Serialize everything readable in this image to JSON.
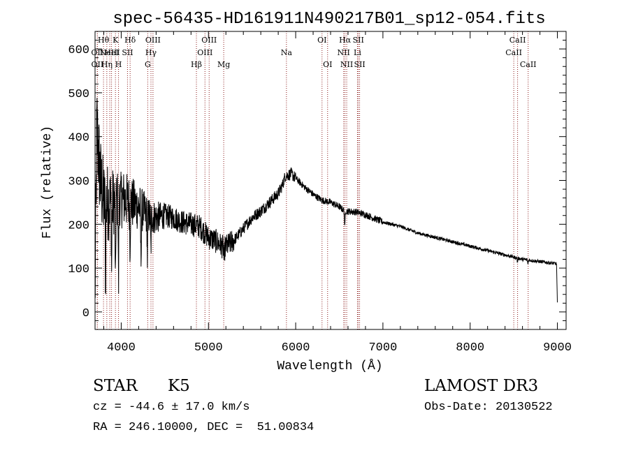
{
  "chart_data": {
    "type": "line",
    "title": "spec-56435-HD161911N490217B01_sp12-054.fits",
    "xlabel": "Wavelength (Å)",
    "ylabel": "Flux (relative)",
    "xlim": [
      3700,
      9100
    ],
    "ylim": [
      -40,
      640
    ],
    "xticks": [
      4000,
      5000,
      6000,
      7000,
      8000,
      9000
    ],
    "yticks": [
      0,
      100,
      200,
      300,
      400,
      500,
      600
    ],
    "x_tick_labels": [
      "4000",
      "5000",
      "6000",
      "7000",
      "8000",
      "9000"
    ],
    "y_tick_labels": [
      "0",
      "100",
      "200",
      "300",
      "400",
      "500",
      "600"
    ],
    "grid": false,
    "series": [
      {
        "name": "flux",
        "color": "#000000",
        "anchors": [
          {
            "w": 3700,
            "f": 30
          },
          {
            "w": 3720,
            "f": 420
          },
          {
            "w": 3760,
            "f": 300
          },
          {
            "w": 3800,
            "f": 250
          },
          {
            "w": 3900,
            "f": 250
          },
          {
            "w": 4000,
            "f": 260
          },
          {
            "w": 4100,
            "f": 250
          },
          {
            "w": 4200,
            "f": 240
          },
          {
            "w": 4300,
            "f": 220
          },
          {
            "w": 4400,
            "f": 215
          },
          {
            "w": 4500,
            "f": 220
          },
          {
            "w": 4600,
            "f": 215
          },
          {
            "w": 4700,
            "f": 205
          },
          {
            "w": 4800,
            "f": 200
          },
          {
            "w": 4900,
            "f": 195
          },
          {
            "w": 5000,
            "f": 170
          },
          {
            "w": 5100,
            "f": 160
          },
          {
            "w": 5180,
            "f": 145
          },
          {
            "w": 5300,
            "f": 165
          },
          {
            "w": 5400,
            "f": 190
          },
          {
            "w": 5500,
            "f": 215
          },
          {
            "w": 5600,
            "f": 230
          },
          {
            "w": 5700,
            "f": 250
          },
          {
            "w": 5800,
            "f": 270
          },
          {
            "w": 5850,
            "f": 290
          },
          {
            "w": 5880,
            "f": 310
          },
          {
            "w": 5950,
            "f": 315
          },
          {
            "w": 6000,
            "f": 305
          },
          {
            "w": 6100,
            "f": 285
          },
          {
            "w": 6200,
            "f": 268
          },
          {
            "w": 6300,
            "f": 255
          },
          {
            "w": 6400,
            "f": 250
          },
          {
            "w": 6500,
            "f": 240
          },
          {
            "w": 6563,
            "f": 230
          },
          {
            "w": 6700,
            "f": 228
          },
          {
            "w": 6800,
            "f": 222
          },
          {
            "w": 7000,
            "f": 205
          },
          {
            "w": 7200,
            "f": 195
          },
          {
            "w": 7400,
            "f": 180
          },
          {
            "w": 7600,
            "f": 170
          },
          {
            "w": 7800,
            "f": 160
          },
          {
            "w": 8000,
            "f": 150
          },
          {
            "w": 8200,
            "f": 140
          },
          {
            "w": 8400,
            "f": 130
          },
          {
            "w": 8600,
            "f": 120
          },
          {
            "w": 8800,
            "f": 115
          },
          {
            "w": 8990,
            "f": 110
          },
          {
            "w": 9000,
            "f": 20
          }
        ],
        "absorption_features": [
          {
            "w": 3820,
            "depth": 180
          },
          {
            "w": 3890,
            "depth": 150
          },
          {
            "w": 3934,
            "depth": 220
          },
          {
            "w": 3969,
            "depth": 200
          },
          {
            "w": 4101,
            "depth": 90
          },
          {
            "w": 4226,
            "depth": 120
          },
          {
            "w": 4300,
            "depth": 100
          },
          {
            "w": 4340,
            "depth": 80
          },
          {
            "w": 5180,
            "depth": 35
          },
          {
            "w": 6563,
            "depth": 40
          },
          {
            "w": 8542,
            "depth": 10
          },
          {
            "w": 8662,
            "depth": 10
          }
        ]
      }
    ],
    "spectral_lines": [
      {
        "w": 3726,
        "label": "OII",
        "row": 1,
        "side": "center"
      },
      {
        "w": 3727,
        "label": "OII",
        "row": 2,
        "side": "center"
      },
      {
        "w": 3797,
        "label": "Hθ",
        "row": 0,
        "side": "center"
      },
      {
        "w": 3835,
        "label": "Hη",
        "row": 2,
        "side": "center"
      },
      {
        "w": 3869,
        "label": "NeIII",
        "row": 1,
        "side": "center"
      },
      {
        "w": 3889,
        "label": "HeI",
        "row": 1,
        "side": "center"
      },
      {
        "w": 3934,
        "label": "K",
        "row": 0,
        "side": "center"
      },
      {
        "w": 3969,
        "label": "H",
        "row": 2,
        "side": "center"
      },
      {
        "w": 4072,
        "label": "SII",
        "row": 1,
        "side": "center"
      },
      {
        "w": 4102,
        "label": "Hδ",
        "row": 0,
        "side": "center"
      },
      {
        "w": 4304,
        "label": "G",
        "row": 2,
        "side": "center"
      },
      {
        "w": 4341,
        "label": "Hγ",
        "row": 1,
        "side": "center"
      },
      {
        "w": 4364,
        "label": "OIII",
        "row": 0,
        "side": "center"
      },
      {
        "w": 4862,
        "label": "Hβ",
        "row": 2,
        "side": "center"
      },
      {
        "w": 4960,
        "label": "OIII",
        "row": 1,
        "side": "center"
      },
      {
        "w": 5008,
        "label": "OIII",
        "row": 0,
        "side": "center"
      },
      {
        "w": 5175,
        "label": "Mg",
        "row": 2,
        "side": "center"
      },
      {
        "w": 5894,
        "label": "Na",
        "row": 1,
        "side": "center"
      },
      {
        "w": 6302,
        "label": "OI",
        "row": 0,
        "side": "center"
      },
      {
        "w": 6366,
        "label": "OI",
        "row": 2,
        "side": "center"
      },
      {
        "w": 6550,
        "label": "NII",
        "row": 1,
        "side": "center"
      },
      {
        "w": 6565,
        "label": "Hα",
        "row": 0,
        "side": "center"
      },
      {
        "w": 6585,
        "label": "NII",
        "row": 2,
        "side": "center"
      },
      {
        "w": 6708,
        "label": "Li",
        "row": 1,
        "side": "center"
      },
      {
        "w": 6718,
        "label": "SII",
        "row": 0,
        "side": "center"
      },
      {
        "w": 6733,
        "label": "SII",
        "row": 2,
        "side": "center"
      },
      {
        "w": 8500,
        "label": "CaII",
        "row": 1,
        "side": "center"
      },
      {
        "w": 8544,
        "label": "CaII",
        "row": 0,
        "side": "center"
      },
      {
        "w": 8665,
        "label": "CaII",
        "row": 2,
        "side": "center"
      }
    ],
    "line_color": "#8b1a1a"
  },
  "info": {
    "object_class": "STAR",
    "subclass": "K5",
    "survey": "LAMOST DR3",
    "redshift": "cz = -44.6 ± 17.0 km/s",
    "obs_date": "Obs-Date: 20130522",
    "coords": "RA = 246.10000, DEC =  51.00834"
  }
}
